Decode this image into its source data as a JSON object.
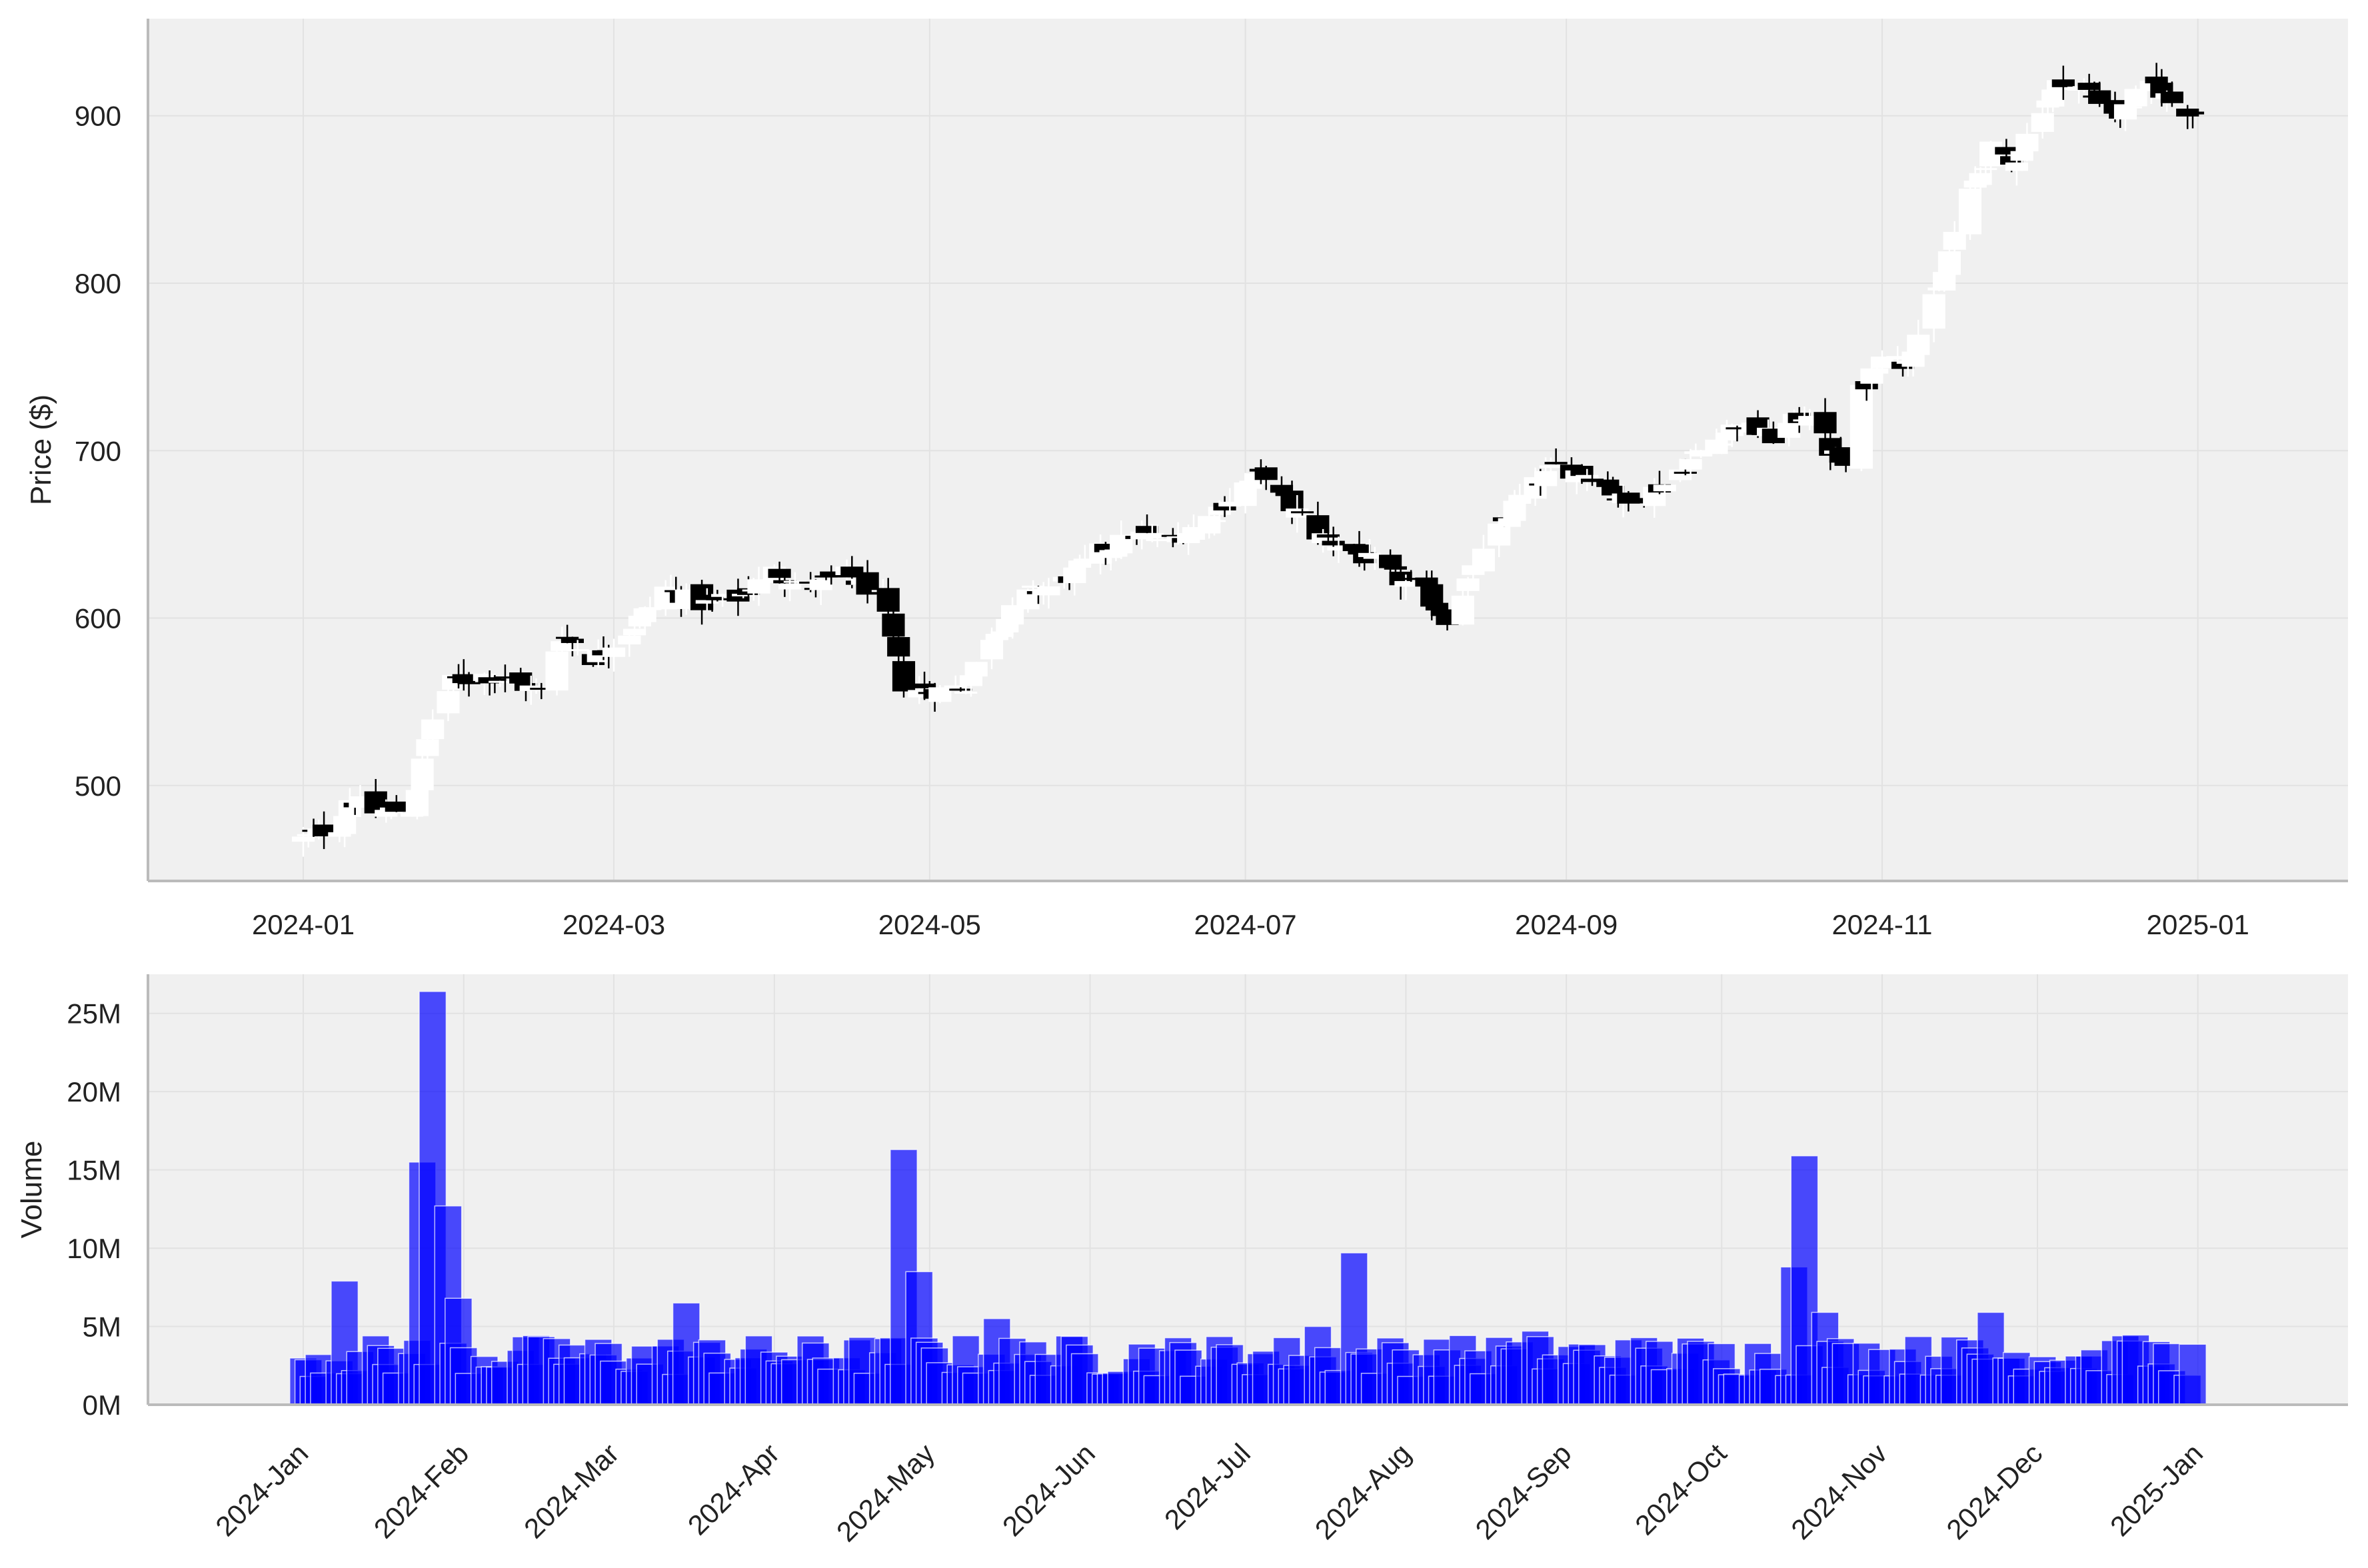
{
  "chart_data": [
    {
      "type": "candlestick",
      "ylabel": "Price ($)",
      "xlabel": "",
      "ylim": [
        443,
        958
      ],
      "xlim": [
        "2023-12-02",
        "2025-01-30"
      ],
      "x_ticks": [
        "2024-01",
        "2024-03",
        "2024-05",
        "2024-07",
        "2024-09",
        "2024-11",
        "2025-01"
      ],
      "y_ticks": [
        500,
        600,
        700,
        800,
        900
      ],
      "grid": true,
      "colors": {
        "background": "#f0f0f0",
        "up": "#ffffff",
        "down": "#000000",
        "grid": "#e2e2e2",
        "axis": "#bbbbbb"
      },
      "close_path": [
        [
          "2024-01-01",
          468
        ],
        [
          "2024-01-08",
          476
        ],
        [
          "2024-01-10",
          492
        ],
        [
          "2024-01-15",
          484
        ],
        [
          "2024-01-22",
          486
        ],
        [
          "2024-01-26",
          540
        ],
        [
          "2024-01-30",
          562
        ],
        [
          "2024-02-05",
          566
        ],
        [
          "2024-02-12",
          560
        ],
        [
          "2024-02-16",
          556
        ],
        [
          "2024-02-20",
          590
        ],
        [
          "2024-02-26",
          576
        ],
        [
          "2024-03-04",
          592
        ],
        [
          "2024-03-11",
          618
        ],
        [
          "2024-03-18",
          608
        ],
        [
          "2024-03-25",
          612
        ],
        [
          "2024-04-01",
          628
        ],
        [
          "2024-04-08",
          618
        ],
        [
          "2024-04-15",
          626
        ],
        [
          "2024-04-22",
          612
        ],
        [
          "2024-04-26",
          560
        ],
        [
          "2024-05-01",
          556
        ],
        [
          "2024-05-08",
          560
        ],
        [
          "2024-05-13",
          590
        ],
        [
          "2024-05-20",
          614
        ],
        [
          "2024-05-27",
          622
        ],
        [
          "2024-06-03",
          640
        ],
        [
          "2024-06-10",
          650
        ],
        [
          "2024-06-17",
          646
        ],
        [
          "2024-06-24",
          660
        ],
        [
          "2024-07-01",
          680
        ],
        [
          "2024-07-05",
          686
        ],
        [
          "2024-07-08",
          672
        ],
        [
          "2024-07-12",
          660
        ],
        [
          "2024-07-15",
          650
        ],
        [
          "2024-07-22",
          640
        ],
        [
          "2024-07-29",
          626
        ],
        [
          "2024-08-05",
          614
        ],
        [
          "2024-08-09",
          600
        ],
        [
          "2024-08-16",
          638
        ],
        [
          "2024-08-23",
          672
        ],
        [
          "2024-08-30",
          690
        ],
        [
          "2024-09-06",
          686
        ],
        [
          "2024-09-13",
          668
        ],
        [
          "2024-09-20",
          680
        ],
        [
          "2024-09-27",
          700
        ],
        [
          "2024-10-04",
          716
        ],
        [
          "2024-10-11",
          708
        ],
        [
          "2024-10-18",
          724
        ],
        [
          "2024-10-22",
          700
        ],
        [
          "2024-10-25",
          690
        ],
        [
          "2024-10-28",
          735
        ],
        [
          "2024-11-01",
          760
        ],
        [
          "2024-11-05",
          752
        ],
        [
          "2024-11-08",
          770
        ],
        [
          "2024-11-12",
          795
        ],
        [
          "2024-11-15",
          830
        ],
        [
          "2024-11-19",
          860
        ],
        [
          "2024-11-22",
          880
        ],
        [
          "2024-11-26",
          870
        ],
        [
          "2024-12-02",
          906
        ],
        [
          "2024-12-06",
          922
        ],
        [
          "2024-12-10",
          916
        ],
        [
          "2024-12-13",
          910
        ],
        [
          "2024-12-17",
          900
        ],
        [
          "2024-12-20",
          912
        ],
        [
          "2024-12-24",
          918
        ],
        [
          "2024-12-27",
          908
        ],
        [
          "2024-12-31",
          902
        ]
      ]
    },
    {
      "type": "bar",
      "ylabel": "Volume",
      "xlabel": "",
      "ylim": [
        0,
        27500000
      ],
      "xlim": [
        "2023-12-02",
        "2025-01-30"
      ],
      "x_ticks": [
        "2024-Jan",
        "2024-Feb",
        "2024-Mar",
        "2024-Apr",
        "2024-May",
        "2024-Jun",
        "2024-Jul",
        "2024-Aug",
        "2024-Sep",
        "2024-Oct",
        "2024-Nov",
        "2024-Dec",
        "2025-Jan"
      ],
      "y_ticks": [
        "0M",
        "5M",
        "10M",
        "15M",
        "20M",
        "25M"
      ],
      "grid": true,
      "colors": {
        "background": "#f0f0f0",
        "bar": "#0000ff",
        "bar_opacity": 0.7,
        "bar_edge": "#ffffff"
      },
      "volume_events": [
        {
          "date": "2024-01-09",
          "value": 7900000
        },
        {
          "date": "2024-01-24",
          "value": 15500000
        },
        {
          "date": "2024-01-26",
          "value": 26400000
        },
        {
          "date": "2024-01-29",
          "value": 12700000
        },
        {
          "date": "2024-01-31",
          "value": 6800000
        },
        {
          "date": "2024-03-15",
          "value": 6500000
        },
        {
          "date": "2024-04-26",
          "value": 16300000
        },
        {
          "date": "2024-04-29",
          "value": 8500000
        },
        {
          "date": "2024-05-14",
          "value": 5500000
        },
        {
          "date": "2024-07-15",
          "value": 5000000
        },
        {
          "date": "2024-07-22",
          "value": 9700000
        },
        {
          "date": "2024-08-26",
          "value": 4700000
        },
        {
          "date": "2024-10-15",
          "value": 8800000
        },
        {
          "date": "2024-10-17",
          "value": 15900000
        },
        {
          "date": "2024-10-21",
          "value": 5900000
        },
        {
          "date": "2024-11-22",
          "value": 5900000
        },
        {
          "date": "2024-12-18",
          "value": 4400000
        }
      ],
      "baseline_volume_range": [
        1800000,
        4500000
      ]
    }
  ]
}
